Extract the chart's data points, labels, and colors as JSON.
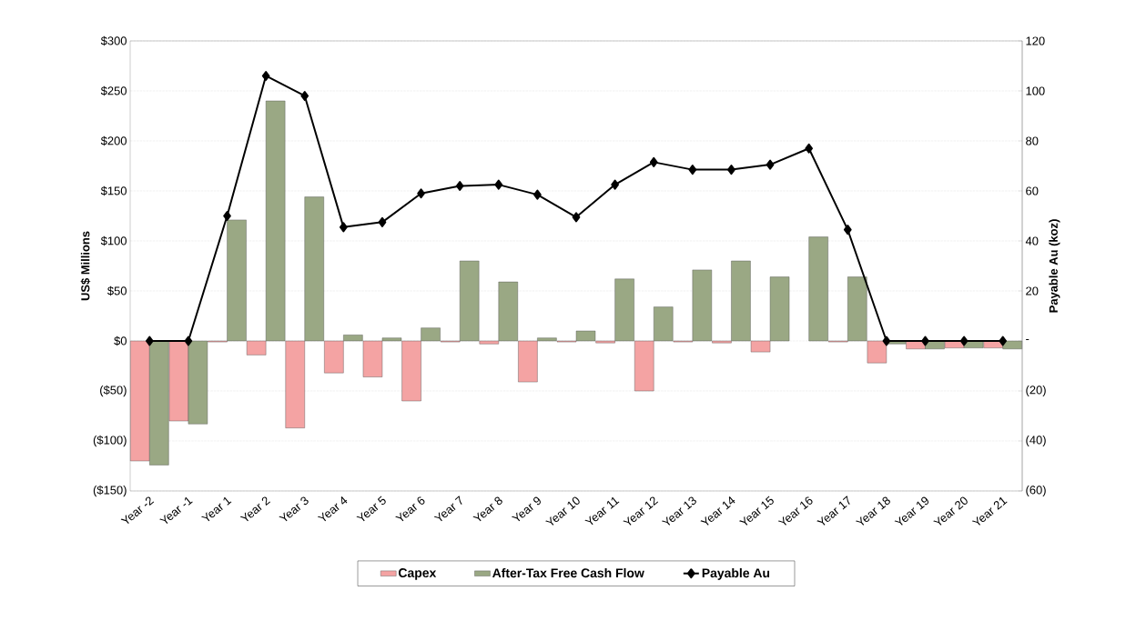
{
  "chart_data": {
    "type": "bar",
    "categories": [
      "Year -2",
      "Year -1",
      "Year 1",
      "Year 2",
      "Year 3",
      "Year 4",
      "Year 5",
      "Year 6",
      "Year 7",
      "Year 8",
      "Year 9",
      "Year 10",
      "Year 11",
      "Year 12",
      "Year 13",
      "Year 14",
      "Year 15",
      "Year 16",
      "Year 17",
      "Year 18",
      "Year 19",
      "Year 20",
      "Year 21"
    ],
    "ylabel": "US$ Millions",
    "y2label": "Payable Au (koz)",
    "series": [
      {
        "name": "Capex",
        "color": "#f4a3a3",
        "values": [
          -120,
          -80,
          -1,
          -14,
          -87,
          -32,
          -36,
          -60,
          -1,
          -3,
          -41,
          -1,
          -2,
          -50,
          -1,
          -2,
          -11,
          null,
          -1,
          -22,
          -8,
          -7,
          -7
        ]
      },
      {
        "name": "After-Tax Free Cash Flow",
        "color": "#9aa884",
        "values": [
          -124,
          -83,
          121,
          240,
          144,
          6,
          3,
          13,
          80,
          59,
          3,
          10,
          62,
          34,
          71,
          80,
          64,
          104,
          64,
          -3,
          -8,
          -7,
          -8
        ]
      },
      {
        "name": "Payable Au",
        "type": "line",
        "axis": "y2",
        "color": "#000000",
        "marker": "diamond",
        "values": [
          0,
          0,
          50,
          106,
          98,
          45.5,
          47.5,
          59,
          62,
          62.5,
          58.5,
          49.5,
          62.5,
          71.5,
          68.5,
          68.5,
          70.5,
          77,
          44.5,
          0,
          0,
          0,
          0
        ]
      }
    ],
    "ylim": [
      -150,
      300
    ],
    "yticks": [
      {
        "value": -150,
        "label": "($150)"
      },
      {
        "value": -100,
        "label": "($100)"
      },
      {
        "value": -50,
        "label": "($50)"
      },
      {
        "value": 0,
        "label": "$0"
      },
      {
        "value": 50,
        "label": "$50"
      },
      {
        "value": 100,
        "label": "$100"
      },
      {
        "value": 150,
        "label": "$150"
      },
      {
        "value": 200,
        "label": "$200"
      },
      {
        "value": 250,
        "label": "$250"
      },
      {
        "value": 300,
        "label": "$300"
      }
    ],
    "y2lim": [
      -60,
      120
    ],
    "y2ticks": [
      {
        "value": -60,
        "label": "(60)"
      },
      {
        "value": -40,
        "label": "(40)"
      },
      {
        "value": -20,
        "label": "(20)"
      },
      {
        "value": 0,
        "label": "-"
      },
      20,
      40,
      60,
      80,
      100,
      120
    ],
    "grid": "y",
    "legend": "bottom"
  }
}
